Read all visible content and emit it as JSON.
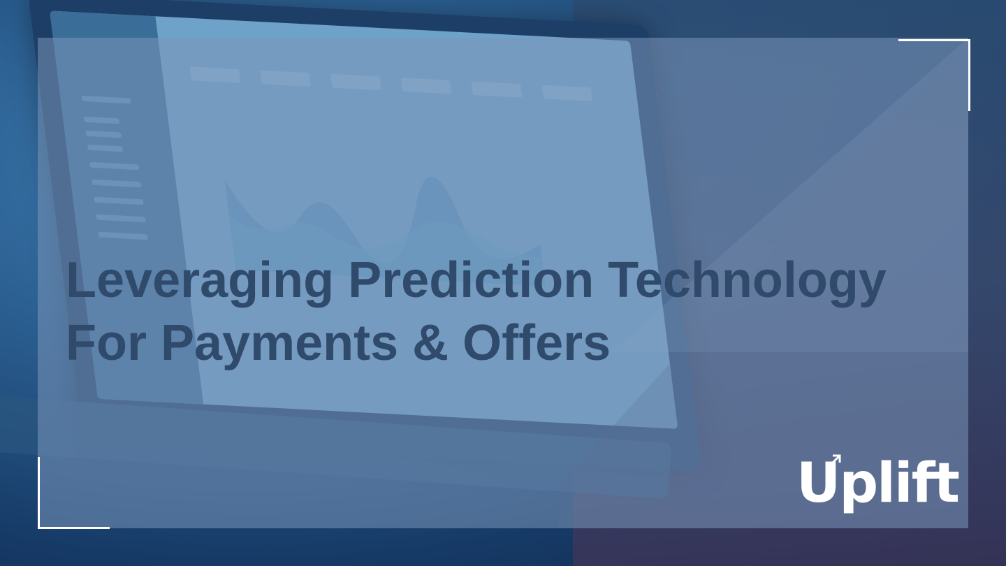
{
  "slide": {
    "title_line1": "Leveraging Prediction Technology",
    "title_line2": "For Payments & Offers"
  },
  "brand": {
    "logo_text": "Uplift",
    "logo_color": "#ffffff"
  },
  "colors": {
    "title": "#2f4a6a",
    "frame_corners": "#ffffff",
    "overlay": "#7a96b9"
  }
}
